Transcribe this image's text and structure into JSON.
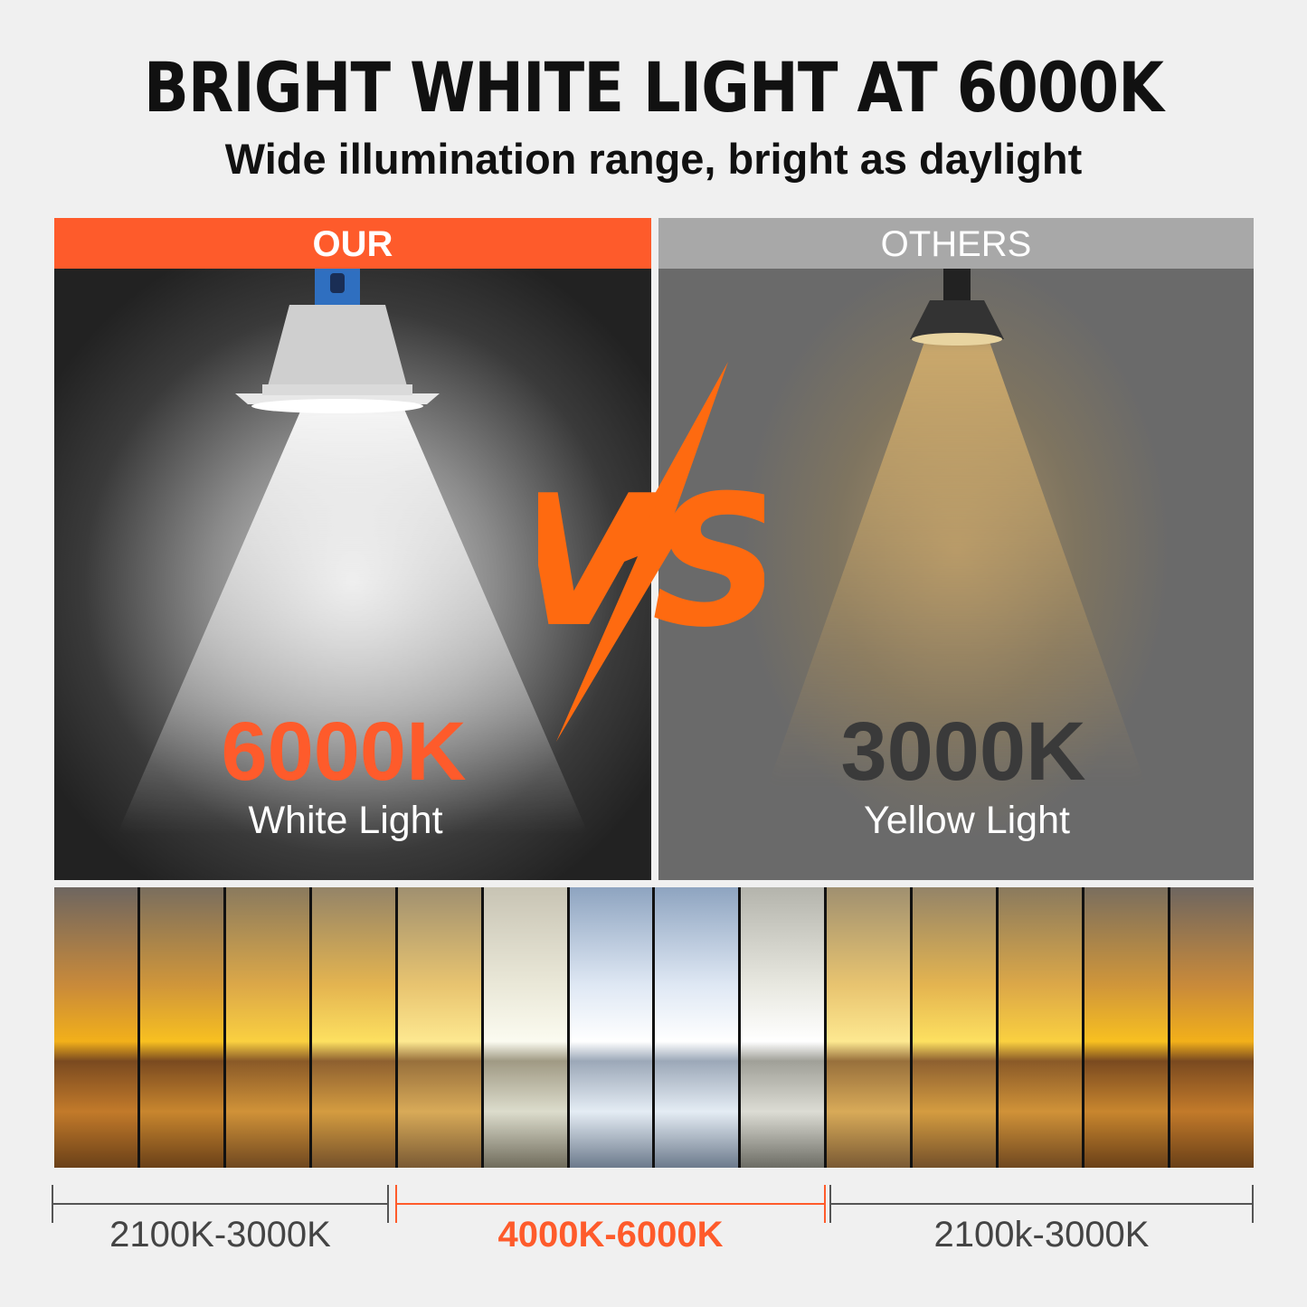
{
  "header": {
    "title": "BRIGHT WHITE LIGHT AT 6000K",
    "subtitle": "Wide illumination range, bright as daylight"
  },
  "comparison": {
    "ours": {
      "label": "OUR",
      "temperature": "6000K",
      "light_type": "White Light",
      "accent": "#fe5b2b"
    },
    "vs": "VS",
    "others": {
      "label": "OTHERS",
      "temperature": "3000K",
      "light_type": "Yellow Light"
    }
  },
  "spectrum": {
    "ranges": [
      {
        "label": "2100K-3000K",
        "color": "#444444"
      },
      {
        "label": "4000K-6000K",
        "color": "#fe5b2b"
      },
      {
        "label": "2100k-3000K",
        "color": "#444444"
      }
    ]
  }
}
